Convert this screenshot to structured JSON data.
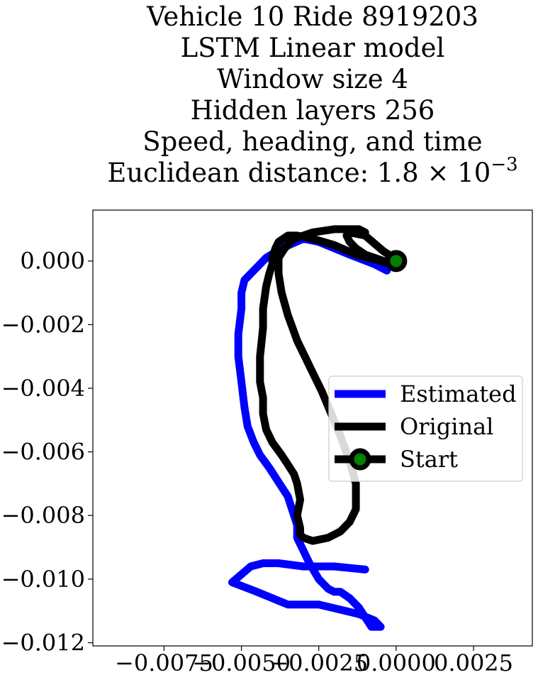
{
  "chart_data": {
    "type": "line",
    "title_lines": [
      "Vehicle 10 Ride 8919203",
      "LSTM Linear model",
      "Window size 4",
      "Hidden layers 256",
      "Speed, heading, and time"
    ],
    "title_math": {
      "prefix": "Euclidean distance: ",
      "mantissa": "1.8",
      "times": "×",
      "base": "10",
      "exponent": "−3"
    },
    "xlim": [
      -0.0098,
      0.0044
    ],
    "ylim": [
      -0.0121,
      0.0016
    ],
    "xticks": [
      {
        "value": -0.0075,
        "label": "−0.0075"
      },
      {
        "value": -0.005,
        "label": "−0.0050"
      },
      {
        "value": -0.0025,
        "label": "−0.0025"
      },
      {
        "value": 0.0,
        "label": "0.0000"
      },
      {
        "value": 0.0025,
        "label": "0.0025"
      }
    ],
    "yticks": [
      {
        "value": 0.0,
        "label": "0.000"
      },
      {
        "value": -0.002,
        "label": "−0.002"
      },
      {
        "value": -0.004,
        "label": "−0.004"
      },
      {
        "value": -0.006,
        "label": "−0.006"
      },
      {
        "value": -0.008,
        "label": "−0.008"
      },
      {
        "value": -0.01,
        "label": "−0.010"
      },
      {
        "value": -0.012,
        "label": "−0.012"
      }
    ],
    "grid": false,
    "legend_position": "center-right",
    "series": [
      {
        "name": "Estimated",
        "color": "#0000ff",
        "x": [
          -0.0003,
          -0.0007,
          -0.0015,
          -0.002,
          -0.0025,
          -0.003,
          -0.0037,
          -0.0042,
          -0.0045,
          -0.0049,
          -0.005,
          -0.005,
          -0.0051,
          -0.0051,
          -0.005,
          -0.0049,
          -0.0048,
          -0.0046,
          -0.0044,
          -0.0041,
          -0.0039,
          -0.0037,
          -0.0035,
          -0.0034,
          -0.0033,
          -0.0032,
          -0.0032,
          -0.003,
          -0.0028,
          -0.0025,
          -0.0022,
          -0.002,
          -0.0018,
          -0.0015,
          -0.0012,
          -0.001,
          -0.0008,
          -0.0005,
          -0.0007,
          -0.0012,
          -0.0025,
          -0.0035,
          -0.0045,
          -0.0053,
          -0.0047,
          -0.0043,
          -0.0038,
          -0.003,
          -0.002,
          -0.001
        ],
        "y": [
          -0.0003,
          -0.0001,
          0.0002,
          0.0004,
          0.0006,
          0.0007,
          0.0004,
          0.0001,
          -0.0002,
          -0.0006,
          -0.001,
          -0.0015,
          -0.0023,
          -0.003,
          -0.0038,
          -0.0046,
          -0.0052,
          -0.0057,
          -0.0061,
          -0.0065,
          -0.0068,
          -0.0071,
          -0.0074,
          -0.0077,
          -0.008,
          -0.0083,
          -0.0087,
          -0.0091,
          -0.0095,
          -0.01,
          -0.0103,
          -0.0104,
          -0.0104,
          -0.0106,
          -0.0109,
          -0.0112,
          -0.0115,
          -0.0115,
          -0.0113,
          -0.0111,
          -0.0108,
          -0.0108,
          -0.0104,
          -0.0101,
          -0.0096,
          -0.0095,
          -0.0095,
          -0.0096,
          -0.0096,
          -0.0097
        ]
      },
      {
        "name": "Original",
        "color": "#000000",
        "x": [
          0.0001,
          -0.0004,
          -0.001,
          -0.0015,
          -0.0016,
          -0.0015,
          -0.0013,
          -0.001,
          -0.0004,
          0.0002,
          0.0001,
          -0.0005,
          -0.0013,
          -0.002,
          -0.0027,
          -0.0032,
          -0.0035,
          -0.0038,
          -0.0039,
          -0.004,
          -0.004,
          -0.0041,
          -0.0042,
          -0.0043,
          -0.0043,
          -0.0044,
          -0.0044,
          -0.0043,
          -0.0043,
          -0.0042,
          -0.004,
          -0.0037,
          -0.0035,
          -0.0033,
          -0.0032,
          -0.0031,
          -0.0032,
          -0.0031,
          -0.0031,
          -0.003,
          -0.0027,
          -0.0022,
          -0.0018,
          -0.0015,
          -0.0013,
          -0.0013,
          -0.0015,
          -0.0018,
          -0.0021,
          -0.0024,
          -0.0028,
          -0.0032,
          -0.0035,
          -0.0037,
          -0.0038,
          -0.0038,
          -0.0036,
          -0.0033,
          -0.0027,
          -0.002,
          -0.0015,
          -0.0012,
          -0.001
        ],
        "y": [
          0.0,
          0.0003,
          0.0008,
          0.0009,
          0.0008,
          0.0006,
          0.0004,
          0.0002,
          0.0,
          -0.0001,
          -0.0002,
          0.0,
          0.0002,
          0.0005,
          0.0007,
          0.0008,
          0.0008,
          0.0006,
          0.0004,
          0.0001,
          -0.0001,
          -0.0004,
          -0.0008,
          -0.0015,
          -0.0021,
          -0.003,
          -0.0038,
          -0.0043,
          -0.0048,
          -0.0053,
          -0.0057,
          -0.0061,
          -0.0064,
          -0.0067,
          -0.007,
          -0.0075,
          -0.008,
          -0.0084,
          -0.0086,
          -0.0087,
          -0.0088,
          -0.0087,
          -0.0085,
          -0.0082,
          -0.0078,
          -0.007,
          -0.0063,
          -0.0055,
          -0.0048,
          -0.0041,
          -0.0033,
          -0.0025,
          -0.0017,
          -0.001,
          -0.0004,
          0.0001,
          0.0004,
          0.0007,
          0.0009,
          0.001,
          0.001,
          0.001,
          0.0009
        ]
      },
      {
        "name": "Start",
        "color": "#000000",
        "marker_color": "#008000",
        "x": [
          0.0
        ],
        "y": [
          0.0
        ]
      }
    ]
  }
}
